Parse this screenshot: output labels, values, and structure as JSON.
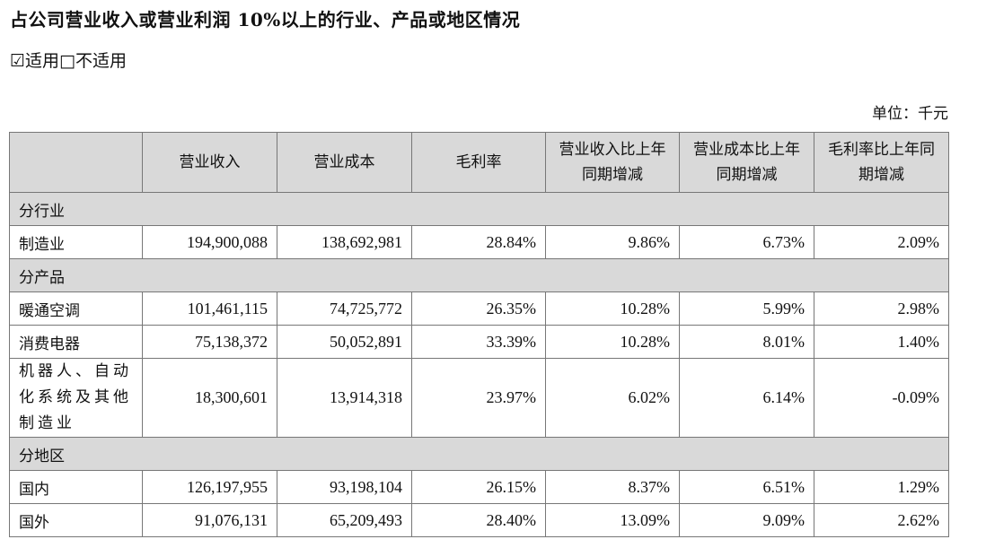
{
  "heading": "占公司营业收入或营业利润 10%以上的行业、产品或地区情况",
  "applicability": "☑适用□不适用",
  "unit": "单位：千元",
  "table": {
    "headers": [
      "",
      "营业收入",
      "营业成本",
      "毛利率",
      "营业收入比上年同期增减",
      "营业成本比上年同期增减",
      "毛利率比上年同期增减"
    ],
    "sections": [
      {
        "title": "分行业",
        "rows": [
          {
            "name": "制造业",
            "values": [
              "194,900,088",
              "138,692,981",
              "28.84%",
              "9.86%",
              "6.73%",
              "2.09%"
            ]
          }
        ]
      },
      {
        "title": "分产品",
        "rows": [
          {
            "name": "暖通空调",
            "values": [
              "101,461,115",
              "74,725,772",
              "26.35%",
              "10.28%",
              "5.99%",
              "2.98%"
            ]
          },
          {
            "name": "消费电器",
            "values": [
              "75,138,372",
              "50,052,891",
              "33.39%",
              "10.28%",
              "8.01%",
              "1.40%"
            ]
          },
          {
            "name": "机器人、自动化系统及其他制造业",
            "values": [
              "18,300,601",
              "13,914,318",
              "23.97%",
              "6.02%",
              "6.14%",
              "-0.09%"
            ]
          }
        ]
      },
      {
        "title": "分地区",
        "rows": [
          {
            "name": "国内",
            "values": [
              "126,197,955",
              "93,198,104",
              "26.15%",
              "8.37%",
              "6.51%",
              "1.29%"
            ]
          },
          {
            "name": "国外",
            "values": [
              "91,076,131",
              "65,209,493",
              "28.40%",
              "13.09%",
              "9.09%",
              "2.62%"
            ]
          }
        ]
      }
    ]
  }
}
